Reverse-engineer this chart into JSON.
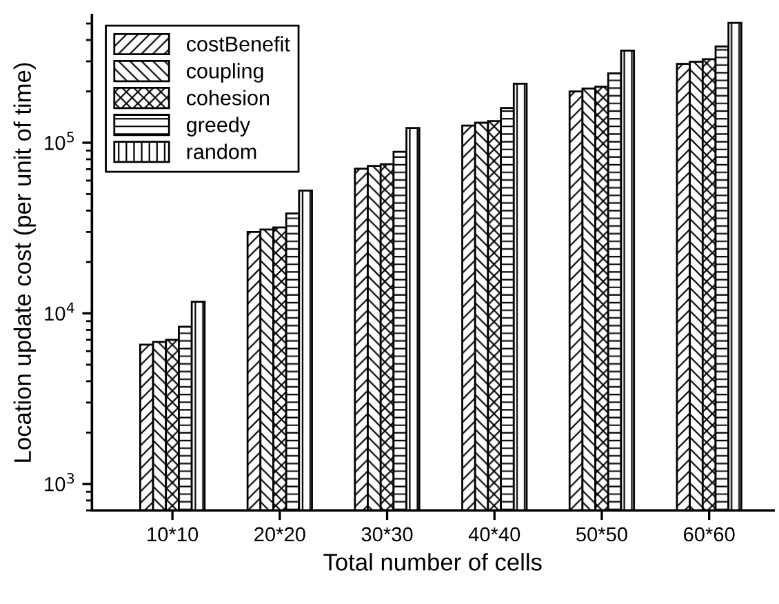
{
  "chart_data": {
    "type": "bar",
    "xlabel": "Total number of cells",
    "ylabel": "Location update cost (per unit of time)",
    "categories": [
      "10*10",
      "20*20",
      "30*30",
      "40*40",
      "50*50",
      "60*60"
    ],
    "series": [
      {
        "name": "costBenefit",
        "color": "#000000",
        "values": [
          6550,
          30000,
          70500,
          126000,
          200000,
          290000
        ]
      },
      {
        "name": "coupling",
        "color": "#000000",
        "values": [
          6800,
          31000,
          73100,
          131000,
          208000,
          298000
        ]
      },
      {
        "name": "cohesion",
        "color": "#000000",
        "values": [
          7000,
          31900,
          74800,
          134000,
          213000,
          309000
        ]
      },
      {
        "name": "greedy",
        "color": "#000000",
        "values": [
          8340,
          38500,
          88500,
          160000,
          255000,
          367000
        ]
      },
      {
        "name": "random",
        "color": "#000000",
        "values": [
          11700,
          52500,
          122000,
          222000,
          347000,
          504000
        ]
      }
    ],
    "log": "y",
    "ylim": [
      700,
      560000
    ],
    "yticks": [
      {
        "value": 1000,
        "label": "10$^{3}$"
      },
      {
        "value": 10000,
        "label": "10$^{4}$"
      },
      {
        "value": 100000,
        "label": "10$^{5}$"
      }
    ],
    "grid": false,
    "legend": "top left"
  }
}
